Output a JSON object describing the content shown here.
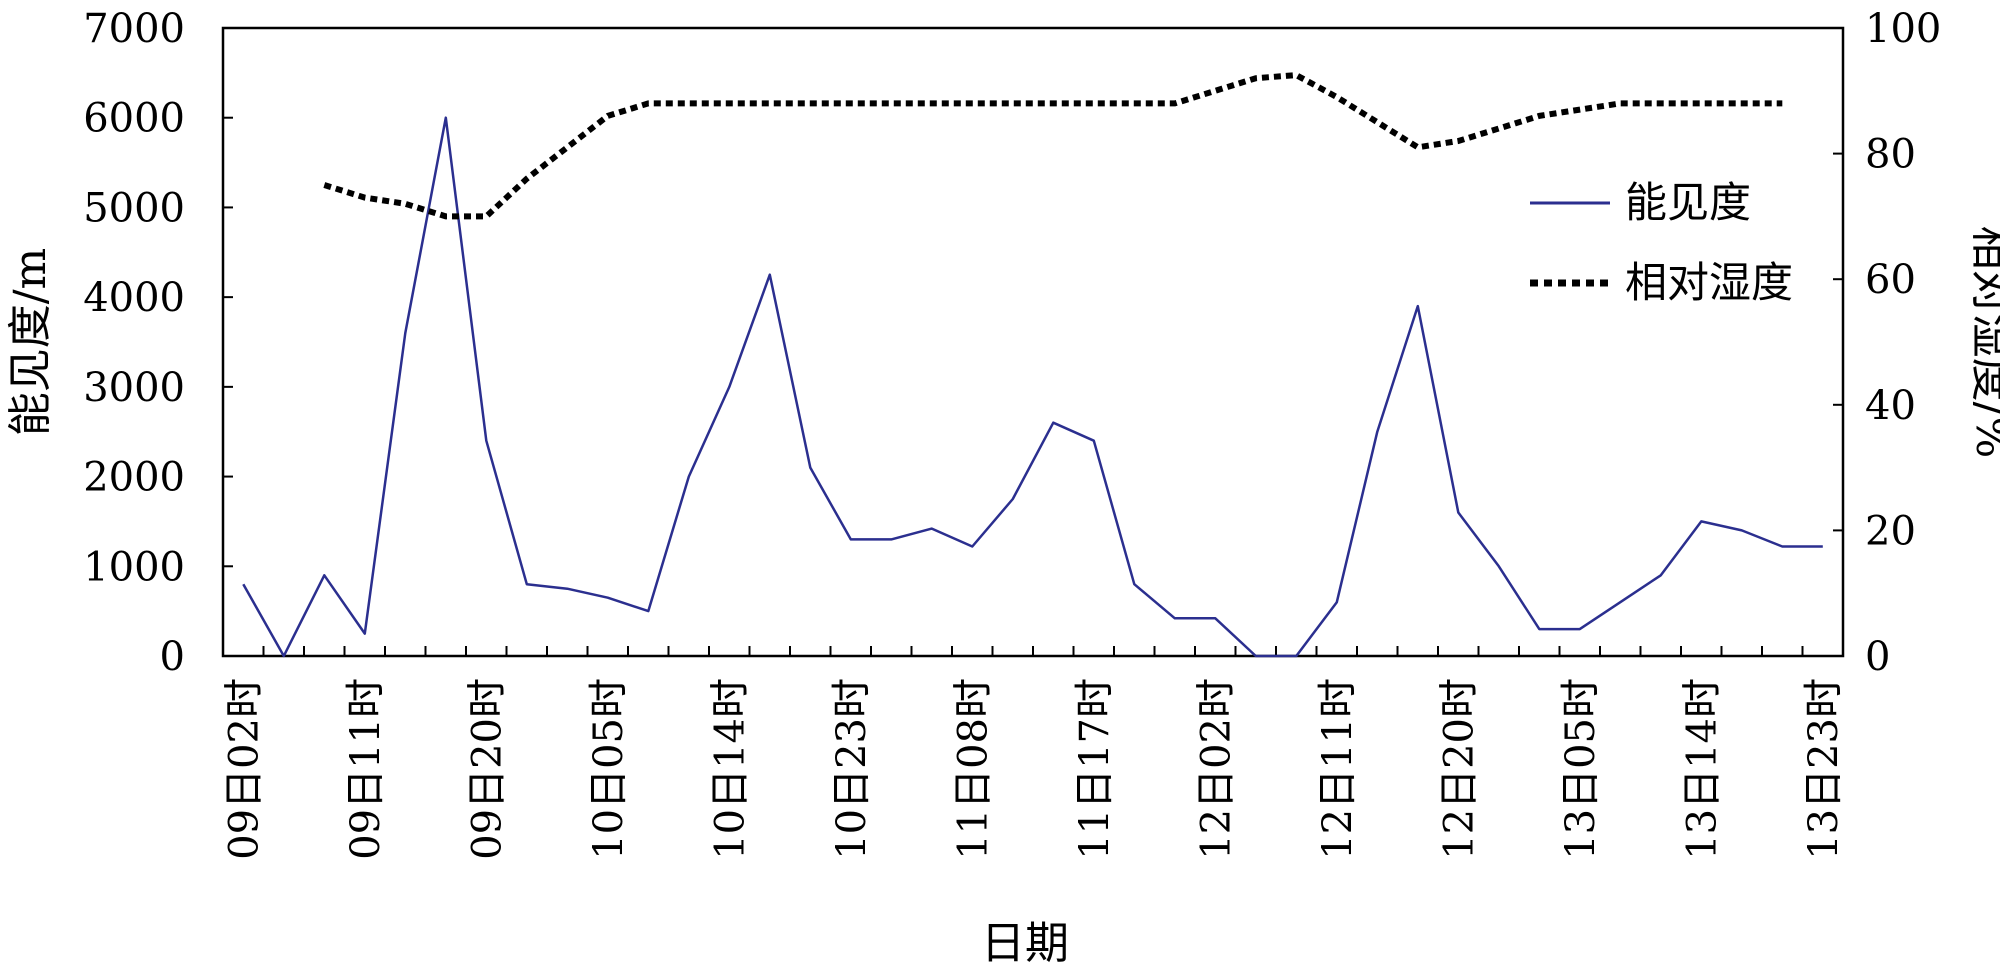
{
  "chart_data": {
    "type": "line",
    "xlabel": "日期",
    "ylabel_left": "能见度/m",
    "ylabel_right": "相对湿度/%",
    "ylim_left": [
      0,
      7000
    ],
    "ylim_right": [
      0,
      100
    ],
    "yticks_left": [
      "0",
      "1000",
      "2000",
      "3000",
      "4000",
      "5000",
      "6000",
      "7000"
    ],
    "yticks_right": [
      "0",
      "20",
      "40",
      "60",
      "80",
      "100"
    ],
    "xticks": [
      "09日02时",
      "09日11时",
      "09日20时",
      "10日05时",
      "10日14时",
      "10日23时",
      "11日08时",
      "11日17时",
      "12日02时",
      "12日11时",
      "12日20时",
      "13日05时",
      "13日14时",
      "13日23时"
    ],
    "legend_position": "right",
    "grid": false,
    "series": [
      {
        "name": "能见度",
        "axis": "left",
        "color": "#2b2f8f",
        "style": "solid",
        "points": [
          [
            0,
            800
          ],
          [
            1,
            0
          ],
          [
            2,
            900
          ],
          [
            3,
            250
          ],
          [
            4,
            3600
          ],
          [
            5,
            6000
          ],
          [
            6,
            2400
          ],
          [
            7,
            800
          ],
          [
            8,
            750
          ],
          [
            9,
            650
          ],
          [
            10,
            500
          ],
          [
            11,
            2000
          ],
          [
            12,
            3000
          ],
          [
            13,
            4250
          ],
          [
            14,
            2100
          ],
          [
            15,
            1300
          ],
          [
            16,
            1300
          ],
          [
            17,
            1420
          ],
          [
            18,
            1220
          ],
          [
            19,
            1750
          ],
          [
            20,
            2600
          ],
          [
            21,
            2400
          ],
          [
            22,
            800
          ],
          [
            23,
            420
          ],
          [
            24,
            420
          ],
          [
            25,
            0
          ],
          [
            26,
            0
          ],
          [
            27,
            600
          ],
          [
            28,
            2500
          ],
          [
            29,
            3900
          ],
          [
            30,
            1600
          ],
          [
            31,
            1000
          ],
          [
            32,
            300
          ],
          [
            33,
            300
          ],
          [
            34,
            600
          ],
          [
            35,
            900
          ],
          [
            36,
            1500
          ],
          [
            37,
            1400
          ],
          [
            38,
            1220
          ],
          [
            39,
            1220
          ]
        ]
      },
      {
        "name": "相对湿度",
        "axis": "right",
        "color": "#000000",
        "style": "dotted",
        "points": [
          [
            2,
            75
          ],
          [
            3,
            73
          ],
          [
            4,
            72
          ],
          [
            5,
            70
          ],
          [
            6,
            70
          ],
          [
            7,
            76
          ],
          [
            8,
            81
          ],
          [
            9,
            86
          ],
          [
            10,
            88
          ],
          [
            11,
            88
          ],
          [
            12,
            88
          ],
          [
            13,
            88
          ],
          [
            14,
            88
          ],
          [
            15,
            88
          ],
          [
            16,
            88
          ],
          [
            17,
            88
          ],
          [
            18,
            88
          ],
          [
            19,
            88
          ],
          [
            20,
            88
          ],
          [
            21,
            88
          ],
          [
            22,
            88
          ],
          [
            23,
            88
          ],
          [
            24,
            90
          ],
          [
            25,
            92
          ],
          [
            26,
            92.5
          ],
          [
            27,
            89
          ],
          [
            28,
            85
          ],
          [
            29,
            81
          ],
          [
            30,
            82
          ],
          [
            31,
            84
          ],
          [
            32,
            86
          ],
          [
            33,
            87
          ],
          [
            34,
            88
          ],
          [
            35,
            88
          ],
          [
            36,
            88
          ],
          [
            37,
            88
          ],
          [
            38,
            88
          ]
        ]
      }
    ]
  }
}
